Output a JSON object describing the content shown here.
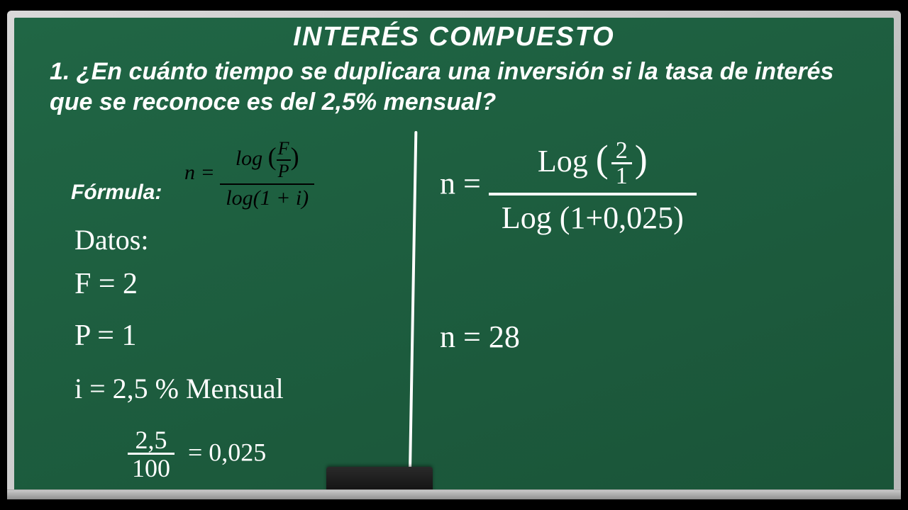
{
  "colors": {
    "board": "#1d5e3f",
    "frame": "#c0c0c0",
    "text_white": "#ffffff",
    "text_black": "#000000"
  },
  "title": "INTERÉS  COMPUESTO",
  "question": "1. ¿En cuánto tiempo se duplicara una inversión si la tasa de interés que se reconoce es del 2,5% mensual?",
  "formula": {
    "label": "Fórmula:",
    "lhs": "n =",
    "numerator_prefix": "log",
    "inner_num": "F",
    "inner_den": "P",
    "denominator": "log(1 + i)"
  },
  "datos": {
    "label": "Datos:",
    "F": "F = 2",
    "P": "P = 1",
    "i": "i = 2,5 % Mensual",
    "conv_num": "2,5",
    "conv_den": "100",
    "conv_eq": "= 0,025"
  },
  "rhs": {
    "eq1_lhs": "n =",
    "eq1_num_prefix": "Log",
    "eq1_frac_num": "2",
    "eq1_frac_den": "1",
    "eq1_den": "Log (1+0,025)",
    "eq2": "n = 28"
  }
}
